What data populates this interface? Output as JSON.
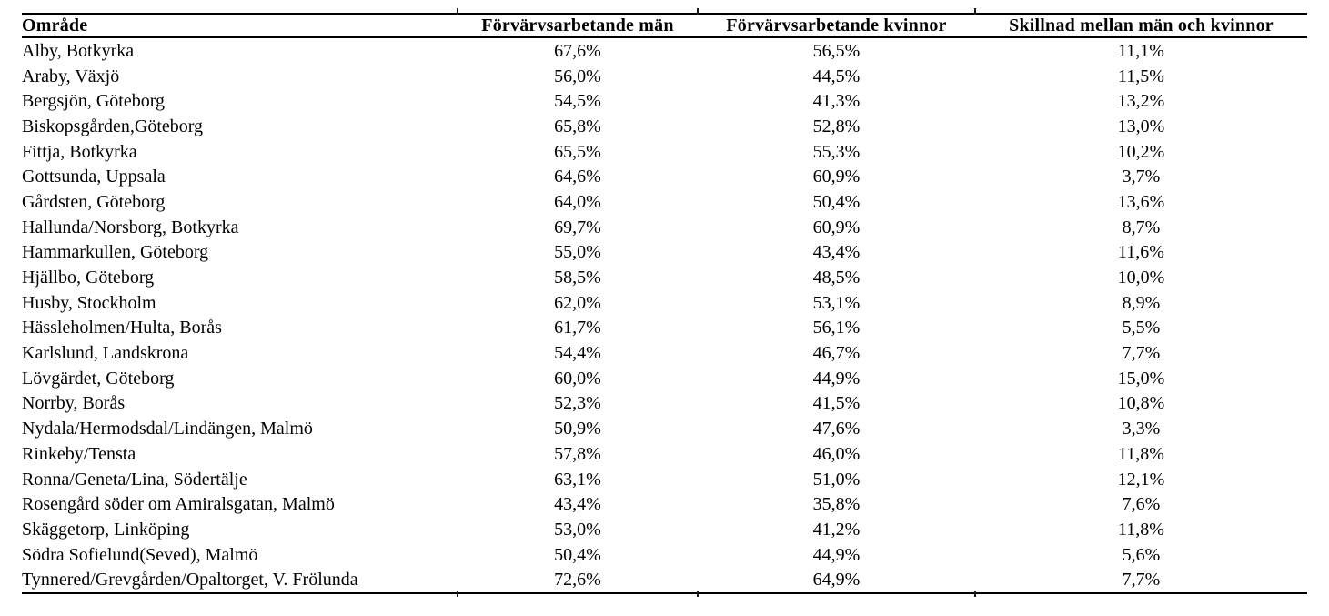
{
  "colors": {
    "background": "#ffffff",
    "text": "#000000",
    "rule": "#000000"
  },
  "table": {
    "columns": [
      "Område",
      "Förvärvsarbetande män",
      "Förvärvsarbetande kvinnor",
      "Skillnad mellan män och kvinnor"
    ],
    "rows": [
      {
        "area": "Alby, Botkyrka",
        "men": "67,6%",
        "women": "56,5%",
        "diff": "11,1%"
      },
      {
        "area": "Araby, Växjö",
        "men": "56,0%",
        "women": "44,5%",
        "diff": "11,5%"
      },
      {
        "area": "Bergsjön, Göteborg",
        "men": "54,5%",
        "women": "41,3%",
        "diff": "13,2%"
      },
      {
        "area": "Biskopsgården,Göteborg",
        "men": "65,8%",
        "women": "52,8%",
        "diff": "13,0%"
      },
      {
        "area": "Fittja, Botkyrka",
        "men": "65,5%",
        "women": "55,3%",
        "diff": "10,2%"
      },
      {
        "area": "Gottsunda, Uppsala",
        "men": "64,6%",
        "women": "60,9%",
        "diff": "3,7%"
      },
      {
        "area": "Gårdsten, Göteborg",
        "men": "64,0%",
        "women": "50,4%",
        "diff": "13,6%"
      },
      {
        "area": "Hallunda/Norsborg, Botkyrka",
        "men": "69,7%",
        "women": "60,9%",
        "diff": "8,7%"
      },
      {
        "area": "Hammarkullen, Göteborg",
        "men": "55,0%",
        "women": "43,4%",
        "diff": "11,6%"
      },
      {
        "area": "Hjällbo, Göteborg",
        "men": "58,5%",
        "women": "48,5%",
        "diff": "10,0%"
      },
      {
        "area": "Husby, Stockholm",
        "men": "62,0%",
        "women": "53,1%",
        "diff": "8,9%"
      },
      {
        "area": "Hässleholmen/Hulta, Borås",
        "men": "61,7%",
        "women": "56,1%",
        "diff": "5,5%"
      },
      {
        "area": "Karlslund, Landskrona",
        "men": "54,4%",
        "women": "46,7%",
        "diff": "7,7%"
      },
      {
        "area": "Lövgärdet, Göteborg",
        "men": "60,0%",
        "women": "44,9%",
        "diff": "15,0%"
      },
      {
        "area": "Norrby, Borås",
        "men": "52,3%",
        "women": "41,5%",
        "diff": "10,8%"
      },
      {
        "area": "Nydala/Hermodsdal/Lindängen, Malmö",
        "men": "50,9%",
        "women": "47,6%",
        "diff": "3,3%"
      },
      {
        "area": "Rinkeby/Tensta",
        "men": "57,8%",
        "women": "46,0%",
        "diff": "11,8%"
      },
      {
        "area": "Ronna/Geneta/Lina, Södertälje",
        "men": "63,1%",
        "women": "51,0%",
        "diff": "12,1%"
      },
      {
        "area": "Rosengård söder om Amiralsgatan, Malmö",
        "men": "43,4%",
        "women": "35,8%",
        "diff": "7,6%"
      },
      {
        "area": "Skäggetorp, Linköping",
        "men": "53,0%",
        "women": "41,2%",
        "diff": "11,8%"
      },
      {
        "area": "Södra Sofielund(Seved), Malmö",
        "men": "50,4%",
        "women": "44,9%",
        "diff": "5,6%"
      },
      {
        "area": "Tynnered/Grevgården/Opaltorget, V. Frölunda",
        "men": "72,6%",
        "women": "64,9%",
        "diff": "7,7%"
      }
    ]
  }
}
